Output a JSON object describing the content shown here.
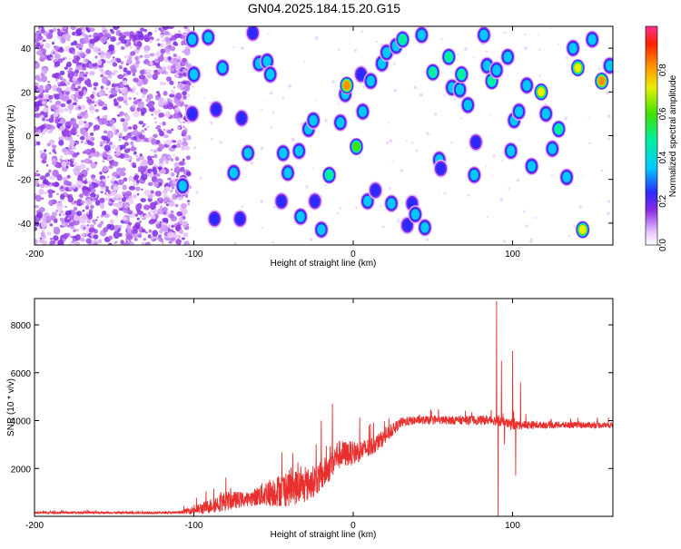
{
  "page": {
    "title": "GN04.2025.184.15.20.G15"
  },
  "chart_data": [
    {
      "type": "heatmap",
      "title": "GN04.2025.184.15.20.G15",
      "xlabel": "Height of straight line (km)",
      "ylabel": "Frequency (Hz)",
      "xlim": [
        -200,
        163
      ],
      "ylim": [
        -50,
        50
      ],
      "xticks": [
        -200,
        -100,
        0,
        100
      ],
      "yticks": [
        -40,
        -20,
        0,
        20,
        40
      ],
      "colorbar": {
        "label": "Normalized spectral amplitude",
        "range": [
          0,
          1
        ],
        "ticks": [
          0.0,
          0.2,
          0.4,
          0.6,
          0.8
        ],
        "colormap": "rainbow"
      },
      "noise_region": [
        -200,
        -107
      ],
      "blobs": [
        {
          "x": -101,
          "y": 44,
          "v": 0.35
        },
        {
          "x": -100,
          "y": 28,
          "v": 0.42
        },
        {
          "x": -107,
          "y": -23,
          "v": 0.35
        },
        {
          "x": -101,
          "y": 10,
          "v": 0.3
        },
        {
          "x": -86,
          "y": 12,
          "v": 0.3
        },
        {
          "x": -91,
          "y": 45,
          "v": 0.35
        },
        {
          "x": -82,
          "y": 31,
          "v": 0.45
        },
        {
          "x": -70,
          "y": 8,
          "v": 0.3
        },
        {
          "x": -66,
          "y": -8,
          "v": 0.35
        },
        {
          "x": -75,
          "y": -17,
          "v": 0.35
        },
        {
          "x": -71,
          "y": -38,
          "v": 0.32
        },
        {
          "x": -87,
          "y": -38,
          "v": 0.3
        },
        {
          "x": -59,
          "y": 33,
          "v": 0.45
        },
        {
          "x": -54,
          "y": 34,
          "v": 0.4
        },
        {
          "x": -63,
          "y": 47,
          "v": 0.3
        },
        {
          "x": -52,
          "y": 28,
          "v": 0.35
        },
        {
          "x": -44,
          "y": -8,
          "v": 0.35
        },
        {
          "x": -41,
          "y": -17,
          "v": 0.35
        },
        {
          "x": -45,
          "y": -30,
          "v": 0.3
        },
        {
          "x": -34,
          "y": -7,
          "v": 0.35
        },
        {
          "x": -33,
          "y": -37,
          "v": 0.45
        },
        {
          "x": -28,
          "y": 3,
          "v": 0.4
        },
        {
          "x": -25,
          "y": 7,
          "v": 0.35
        },
        {
          "x": -24,
          "y": -30,
          "v": 0.32
        },
        {
          "x": -20,
          "y": -43,
          "v": 0.45
        },
        {
          "x": -15,
          "y": -18,
          "v": 0.55
        },
        {
          "x": -8,
          "y": 6,
          "v": 0.35
        },
        {
          "x": -5,
          "y": 19,
          "v": 0.4
        },
        {
          "x": -4,
          "y": 23,
          "v": 0.85
        },
        {
          "x": 2,
          "y": -5,
          "v": 0.6
        },
        {
          "x": 5,
          "y": 28,
          "v": 0.3
        },
        {
          "x": 6,
          "y": 11,
          "v": 0.35
        },
        {
          "x": 9,
          "y": -30,
          "v": 0.4
        },
        {
          "x": 11,
          "y": 25,
          "v": 0.4
        },
        {
          "x": 14,
          "y": -25,
          "v": 0.3
        },
        {
          "x": 18,
          "y": 33,
          "v": 0.35
        },
        {
          "x": 21,
          "y": 38,
          "v": 0.35
        },
        {
          "x": 24,
          "y": -31,
          "v": 0.4
        },
        {
          "x": 27,
          "y": 41,
          "v": 0.45
        },
        {
          "x": 31,
          "y": 44,
          "v": 0.55
        },
        {
          "x": 34,
          "y": -41,
          "v": 0.3
        },
        {
          "x": 37,
          "y": -31,
          "v": 0.3
        },
        {
          "x": 39,
          "y": -36,
          "v": 0.4
        },
        {
          "x": 43,
          "y": 46,
          "v": 0.35
        },
        {
          "x": 45,
          "y": -42,
          "v": 0.4
        },
        {
          "x": 50,
          "y": 29,
          "v": 0.5
        },
        {
          "x": 54,
          "y": -11,
          "v": 0.4
        },
        {
          "x": 55,
          "y": -15,
          "v": 0.3
        },
        {
          "x": 60,
          "y": 36,
          "v": 0.5
        },
        {
          "x": 62,
          "y": 22,
          "v": 0.45
        },
        {
          "x": 67,
          "y": 21,
          "v": 0.4
        },
        {
          "x": 68,
          "y": 28,
          "v": 0.5
        },
        {
          "x": 72,
          "y": 14,
          "v": 0.4
        },
        {
          "x": 76,
          "y": -18,
          "v": 0.35
        },
        {
          "x": 77,
          "y": -3,
          "v": 0.3
        },
        {
          "x": 82,
          "y": 46,
          "v": 0.4
        },
        {
          "x": 84,
          "y": 32,
          "v": 0.35
        },
        {
          "x": 87,
          "y": 25,
          "v": 0.55
        },
        {
          "x": 90,
          "y": 30,
          "v": 0.45
        },
        {
          "x": 97,
          "y": 36,
          "v": 0.45
        },
        {
          "x": 99,
          "y": -7,
          "v": 0.35
        },
        {
          "x": 101,
          "y": 7,
          "v": 0.35
        },
        {
          "x": 104,
          "y": 11,
          "v": 0.4
        },
        {
          "x": 109,
          "y": 23,
          "v": 0.45
        },
        {
          "x": 112,
          "y": -14,
          "v": 0.35
        },
        {
          "x": 118,
          "y": 20,
          "v": 0.75
        },
        {
          "x": 121,
          "y": 10,
          "v": 0.4
        },
        {
          "x": 125,
          "y": -6,
          "v": 0.35
        },
        {
          "x": 129,
          "y": 3,
          "v": 0.55
        },
        {
          "x": 134,
          "y": -19,
          "v": 0.35
        },
        {
          "x": 138,
          "y": 40,
          "v": 0.45
        },
        {
          "x": 141,
          "y": 31,
          "v": 0.75
        },
        {
          "x": 144,
          "y": -43,
          "v": 0.75
        },
        {
          "x": 150,
          "y": 44,
          "v": 0.4
        },
        {
          "x": 156,
          "y": 25,
          "v": 0.85
        },
        {
          "x": 161,
          "y": 32,
          "v": 0.45
        }
      ]
    },
    {
      "type": "line",
      "xlabel": "Height of straight line (km)",
      "ylabel": "SNR (10 * v/v)",
      "xlim": [
        -200,
        163
      ],
      "ylim": [
        0,
        9100
      ],
      "xticks": [
        -200,
        -100,
        0,
        100
      ],
      "yticks": [
        2000,
        4000,
        6000,
        8000
      ],
      "series": [
        {
          "color": "#e8302e",
          "envelope": [
            {
              "x": -200,
              "base": 150,
              "noise": 60
            },
            {
              "x": -110,
              "base": 150,
              "noise": 60
            },
            {
              "x": -95,
              "base": 300,
              "noise": 350
            },
            {
              "x": -80,
              "base": 600,
              "noise": 600
            },
            {
              "x": -65,
              "base": 700,
              "noise": 400
            },
            {
              "x": -55,
              "base": 900,
              "noise": 800
            },
            {
              "x": -40,
              "base": 1100,
              "noise": 1100
            },
            {
              "x": -30,
              "base": 1200,
              "noise": 1000
            },
            {
              "x": -20,
              "base": 1600,
              "noise": 900
            },
            {
              "x": -15,
              "base": 2000,
              "noise": 900
            },
            {
              "x": -10,
              "base": 2500,
              "noise": 900
            },
            {
              "x": 0,
              "base": 2600,
              "noise": 700
            },
            {
              "x": 10,
              "base": 2800,
              "noise": 600
            },
            {
              "x": 20,
              "base": 3300,
              "noise": 450
            },
            {
              "x": 30,
              "base": 3900,
              "noise": 300
            },
            {
              "x": 40,
              "base": 4000,
              "noise": 250
            },
            {
              "x": 60,
              "base": 4000,
              "noise": 250
            },
            {
              "x": 88,
              "base": 4000,
              "noise": 280
            },
            {
              "x": 100,
              "base": 3800,
              "noise": 300
            },
            {
              "x": 120,
              "base": 3800,
              "noise": 200
            },
            {
              "x": 163,
              "base": 3800,
              "noise": 180
            }
          ],
          "spikes": [
            {
              "x": -20,
              "y": 4000
            },
            {
              "x": -13,
              "y": 4700
            },
            {
              "x": 90,
              "y": 9000
            },
            {
              "x": 91,
              "y": 0
            },
            {
              "x": 93,
              "y": 6500
            },
            {
              "x": 100,
              "y": 6900
            },
            {
              "x": 102,
              "y": 1700
            },
            {
              "x": 95,
              "y": 3000
            },
            {
              "x": 105,
              "y": 5600
            }
          ]
        }
      ]
    }
  ]
}
